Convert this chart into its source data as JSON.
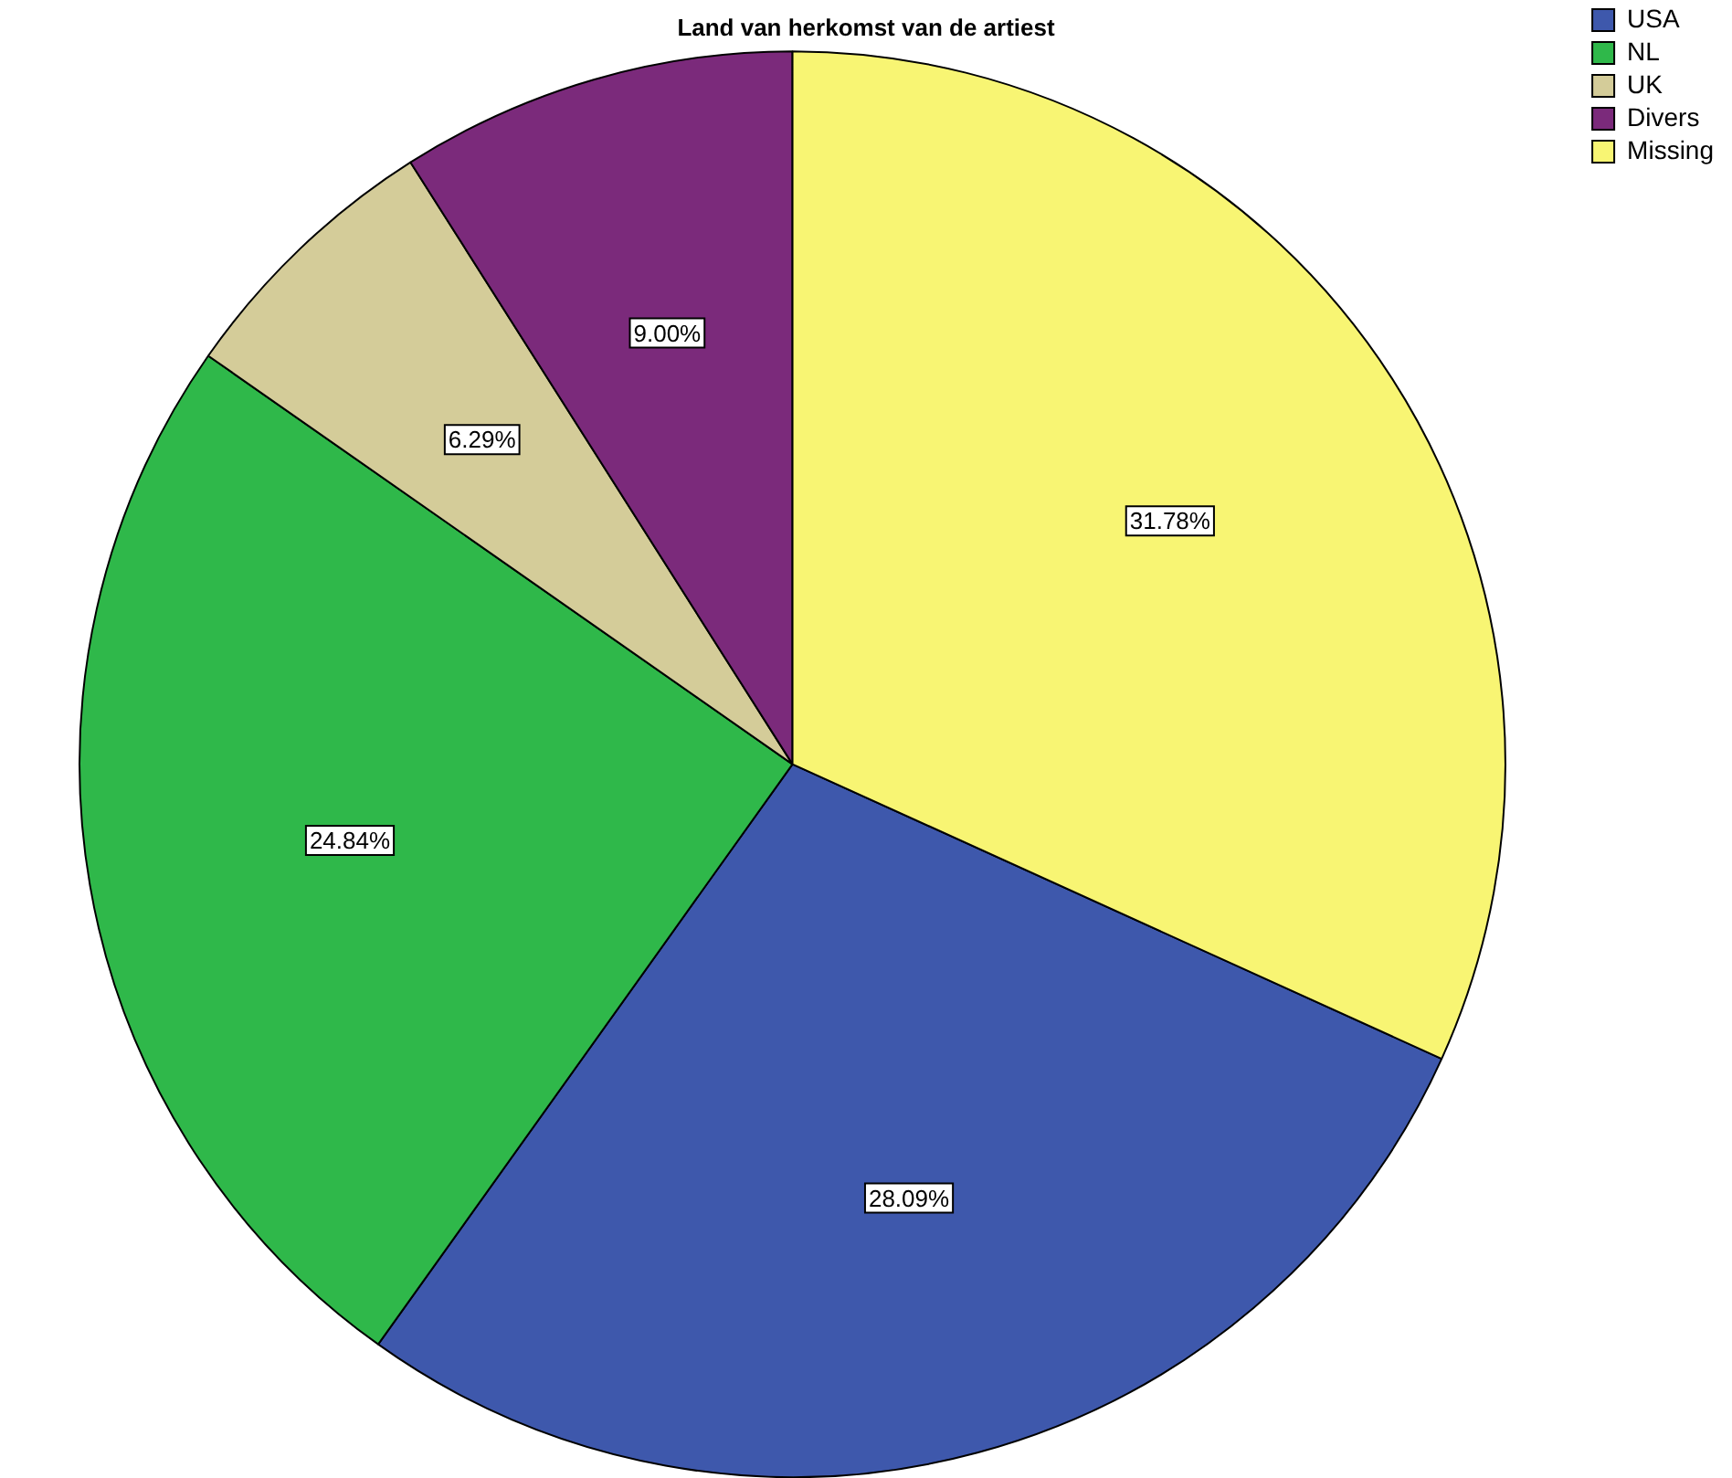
{
  "chart_data": {
    "type": "pie",
    "title": "Land van herkomst van de artiest",
    "categories": [
      "USA",
      "NL",
      "UK",
      "Divers",
      "Missing"
    ],
    "values": [
      28.09,
      24.84,
      6.29,
      9.0,
      31.78
    ],
    "value_labels": [
      "28.09%",
      "24.84%",
      "6.29%",
      "9.00%",
      "31.78%"
    ],
    "colors": [
      "#3e58ac",
      "#2fb84a",
      "#d4cc99",
      "#7b2a7b",
      "#f8f573"
    ],
    "legend": "top right"
  }
}
